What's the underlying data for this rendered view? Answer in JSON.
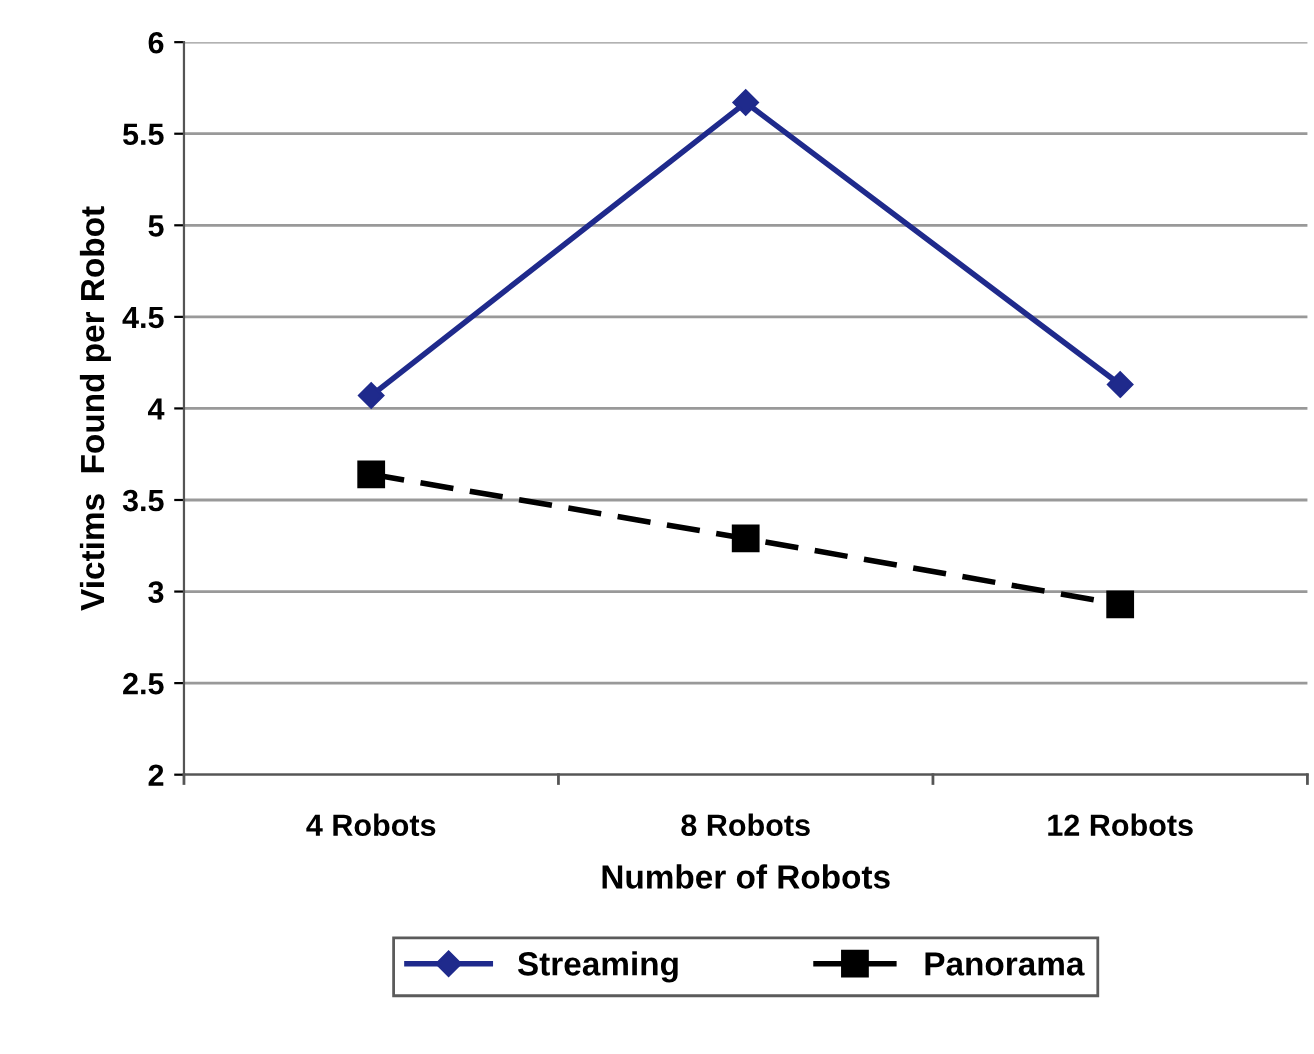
{
  "chart_data": {
    "type": "line",
    "xlabel": "Number of Robots",
    "ylabel": "Victims  Found per Robot",
    "categories": [
      "4 Robots",
      "8 Robots",
      "12 Robots"
    ],
    "series": [
      {
        "name": "Streaming",
        "color": "#1f2a8c",
        "values": [
          4.07,
          5.67,
          4.13
        ],
        "marker": "diamond",
        "line_style": "solid"
      },
      {
        "name": "Panorama",
        "color": "#000000",
        "values": [
          3.64,
          3.29,
          2.93
        ],
        "marker": "square",
        "line_style": "dashed"
      }
    ],
    "ylim": [
      2,
      6
    ],
    "yticks": [
      2,
      2.5,
      3,
      3.5,
      4,
      4.5,
      5,
      5.5,
      6
    ],
    "grid": "y",
    "legend": "bottom"
  }
}
